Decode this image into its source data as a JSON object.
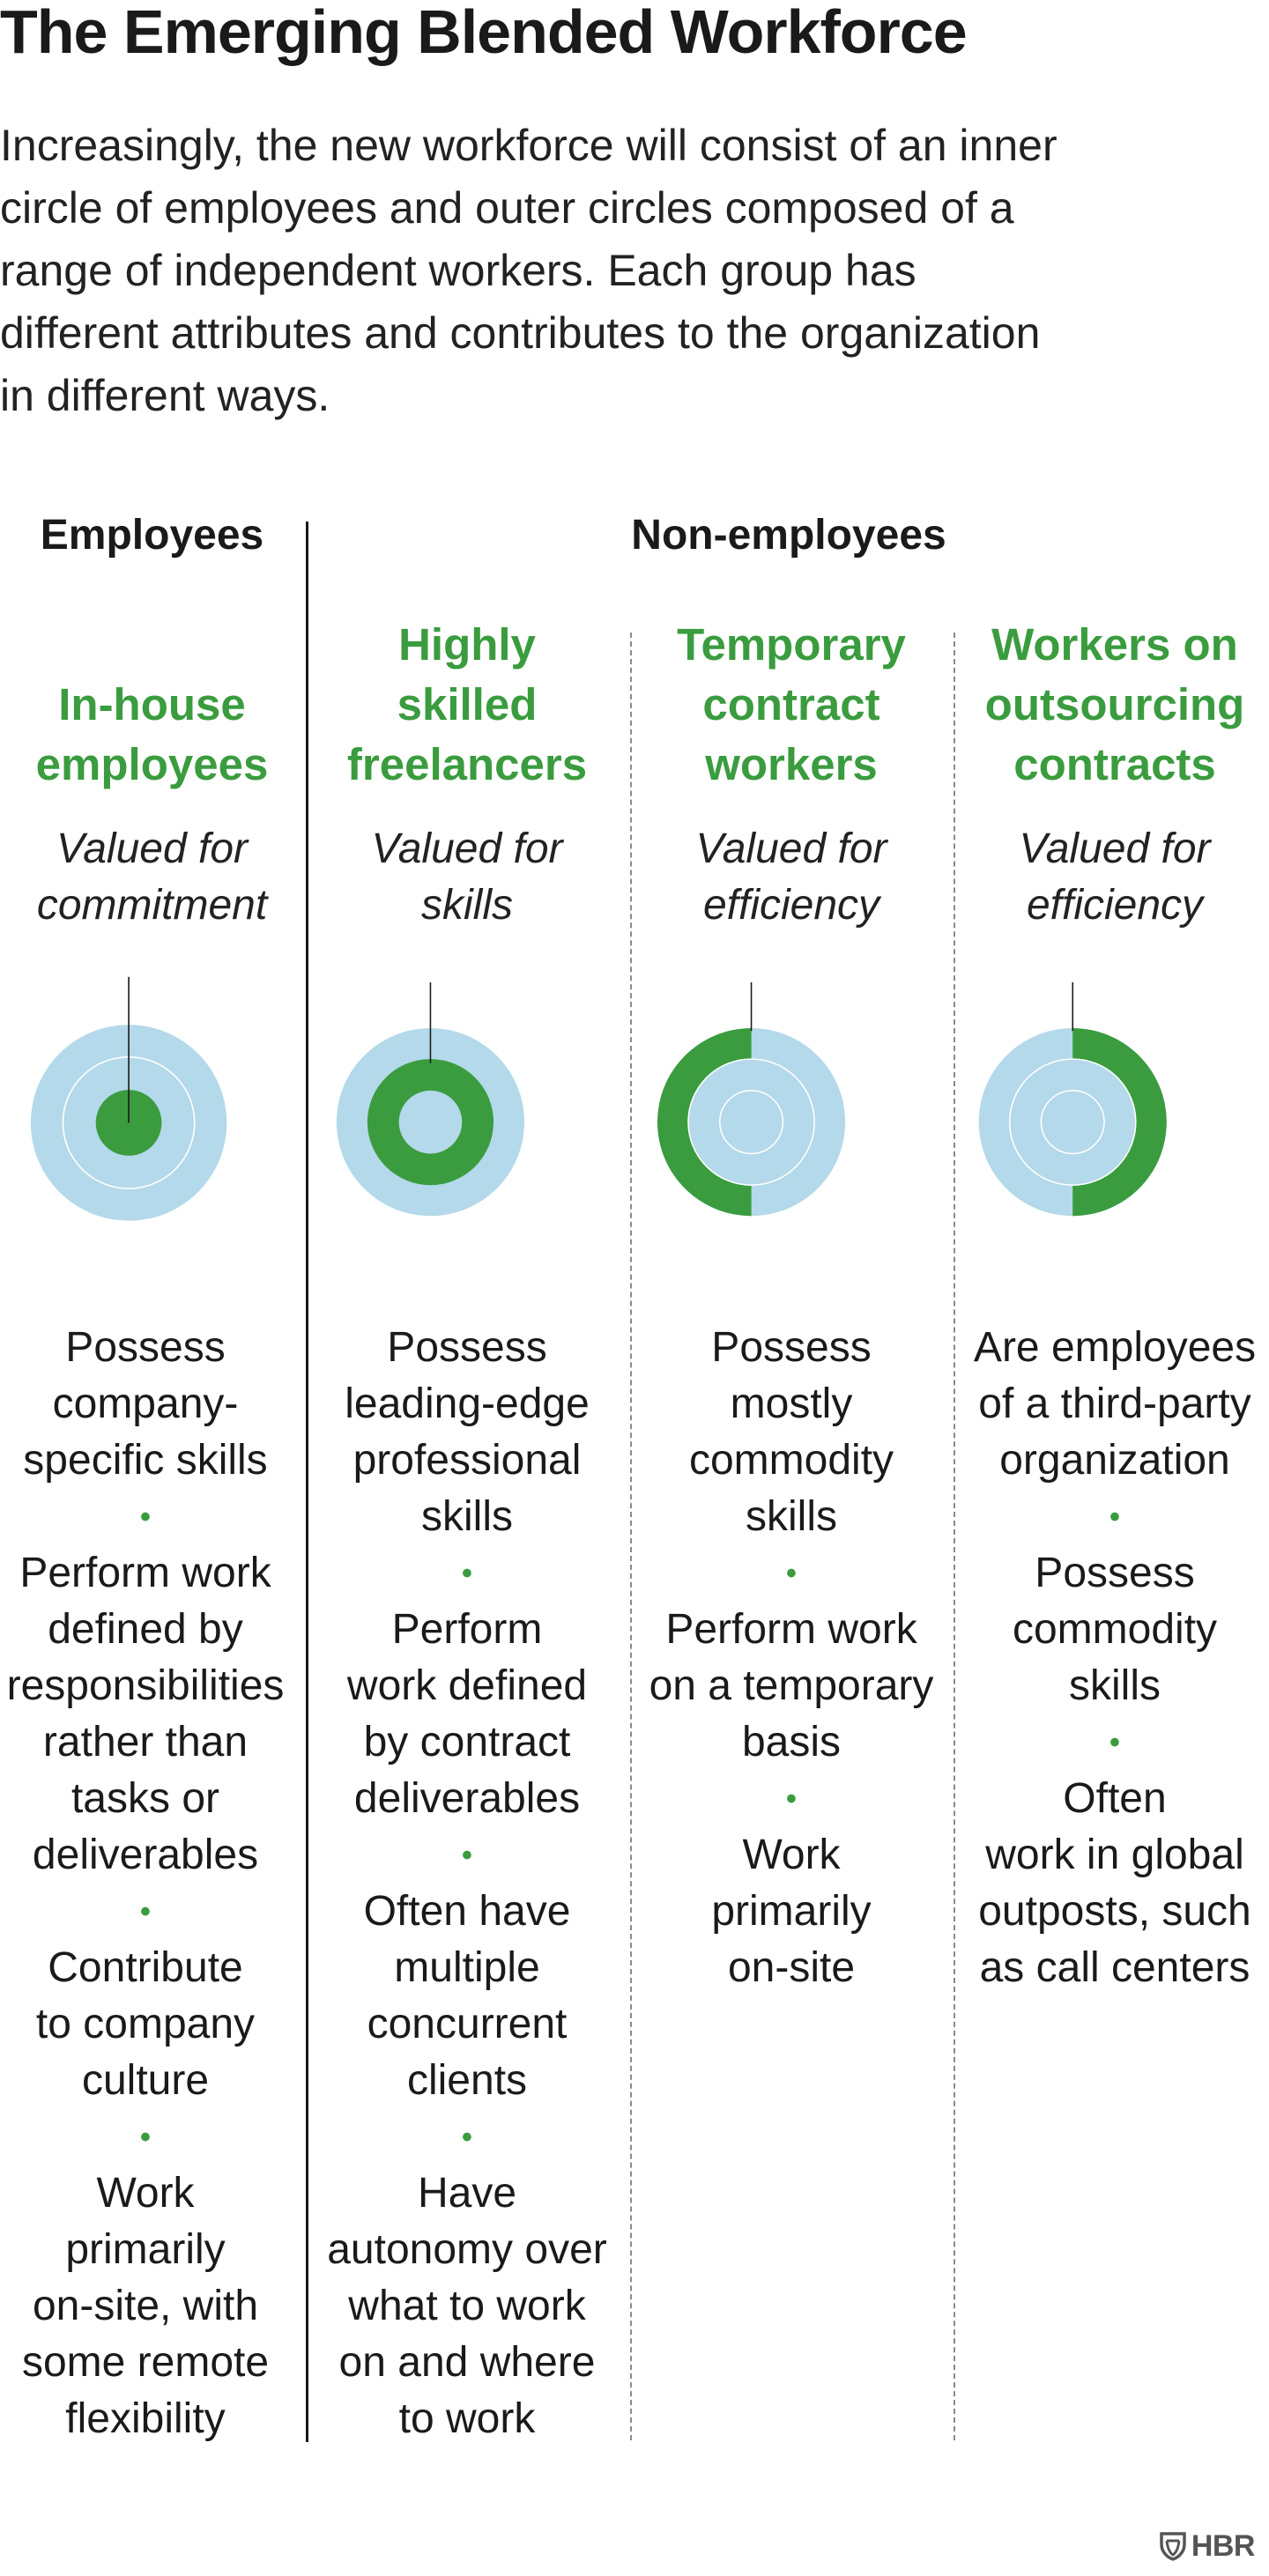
{
  "title": "The Emerging Blended Workforce",
  "intro_lines": [
    "Increasingly, the new workforce will consist of an inner",
    "circle of employees and outer circles composed of a",
    "range of independent workers. Each group has",
    "different attributes and contributes to the organization",
    "in different ways."
  ],
  "groups": {
    "employees": "Employees",
    "non_employees": "Non-employees"
  },
  "colors": {
    "accent_green": "#3a9c3e",
    "ring_blue": "#b3d9ea",
    "text": "#1a1a1a"
  },
  "columns": [
    {
      "title_lines": [
        "In-house",
        "employees"
      ],
      "valued_lines": [
        "Valued for",
        "commitment"
      ],
      "highlight": "inner-core",
      "items": [
        [
          "Possess",
          "company-",
          "specific skills"
        ],
        [
          "Perform work",
          "defined by",
          "responsibilities",
          "rather than",
          "tasks or",
          "deliverables"
        ],
        [
          "Contribute",
          "to company",
          "culture"
        ],
        [
          "Work",
          "primarily",
          "on-site, with",
          "some remote",
          "flexibility"
        ]
      ]
    },
    {
      "title_lines": [
        "Highly",
        "skilled",
        "freelancers"
      ],
      "valued_lines": [
        "Valued for",
        "skills"
      ],
      "highlight": "middle-ring",
      "items": [
        [
          "Possess",
          "leading-edge",
          "professional",
          "skills"
        ],
        [
          "Perform",
          "work defined",
          "by contract",
          "deliverables"
        ],
        [
          "Often have",
          "multiple",
          "concurrent",
          "clients"
        ],
        [
          "Have",
          "autonomy over",
          "what to work",
          "on and where",
          "to work"
        ]
      ]
    },
    {
      "title_lines": [
        "Temporary",
        "contract",
        "workers"
      ],
      "valued_lines": [
        "Valued for",
        "efficiency"
      ],
      "highlight": "outer-ring-left-half",
      "items": [
        [
          "Possess",
          "mostly",
          "commodity",
          "skills"
        ],
        [
          "Perform work",
          "on a temporary",
          "basis"
        ],
        [
          "Work",
          "primarily",
          "on-site"
        ]
      ]
    },
    {
      "title_lines": [
        "Workers on",
        "outsourcing",
        "contracts"
      ],
      "valued_lines": [
        "Valued for",
        "efficiency"
      ],
      "highlight": "outer-ring-right-half",
      "items": [
        [
          "Are employees",
          "of a third-party",
          "organization"
        ],
        [
          "Possess",
          "commodity",
          "skills"
        ],
        [
          "Often",
          "work in global",
          "outposts, such",
          "as call centers"
        ]
      ]
    }
  ],
  "logo": "HBR"
}
